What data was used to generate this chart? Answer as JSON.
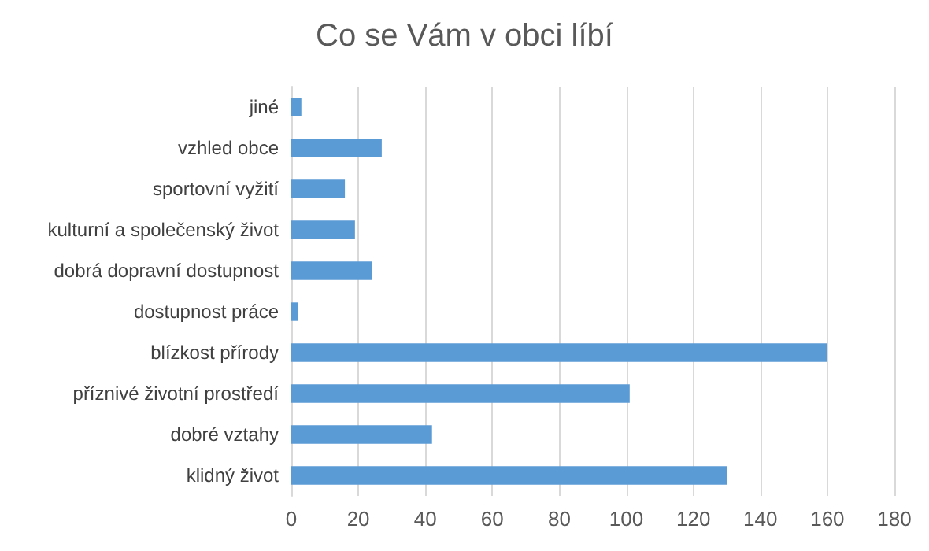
{
  "chart_data": {
    "type": "bar",
    "orientation": "horizontal",
    "title": "Co se Vám v obci líbí",
    "categories": [
      "jiné",
      "vzhled obce",
      "sportovní vyžití",
      "kulturní a společenský život",
      "dobrá dopravní dostupnost",
      "dostupnost práce",
      "blízkost přírody",
      "příznivé životní prostředí",
      "dobré vztahy",
      "klidný život"
    ],
    "values": [
      3,
      27,
      16,
      19,
      24,
      2,
      160,
      101,
      42,
      130
    ],
    "color": "#5b9bd5",
    "xlim": [
      0,
      180
    ],
    "xticks": [
      0,
      20,
      40,
      60,
      80,
      100,
      120,
      140,
      160,
      180
    ],
    "grid": "x"
  }
}
